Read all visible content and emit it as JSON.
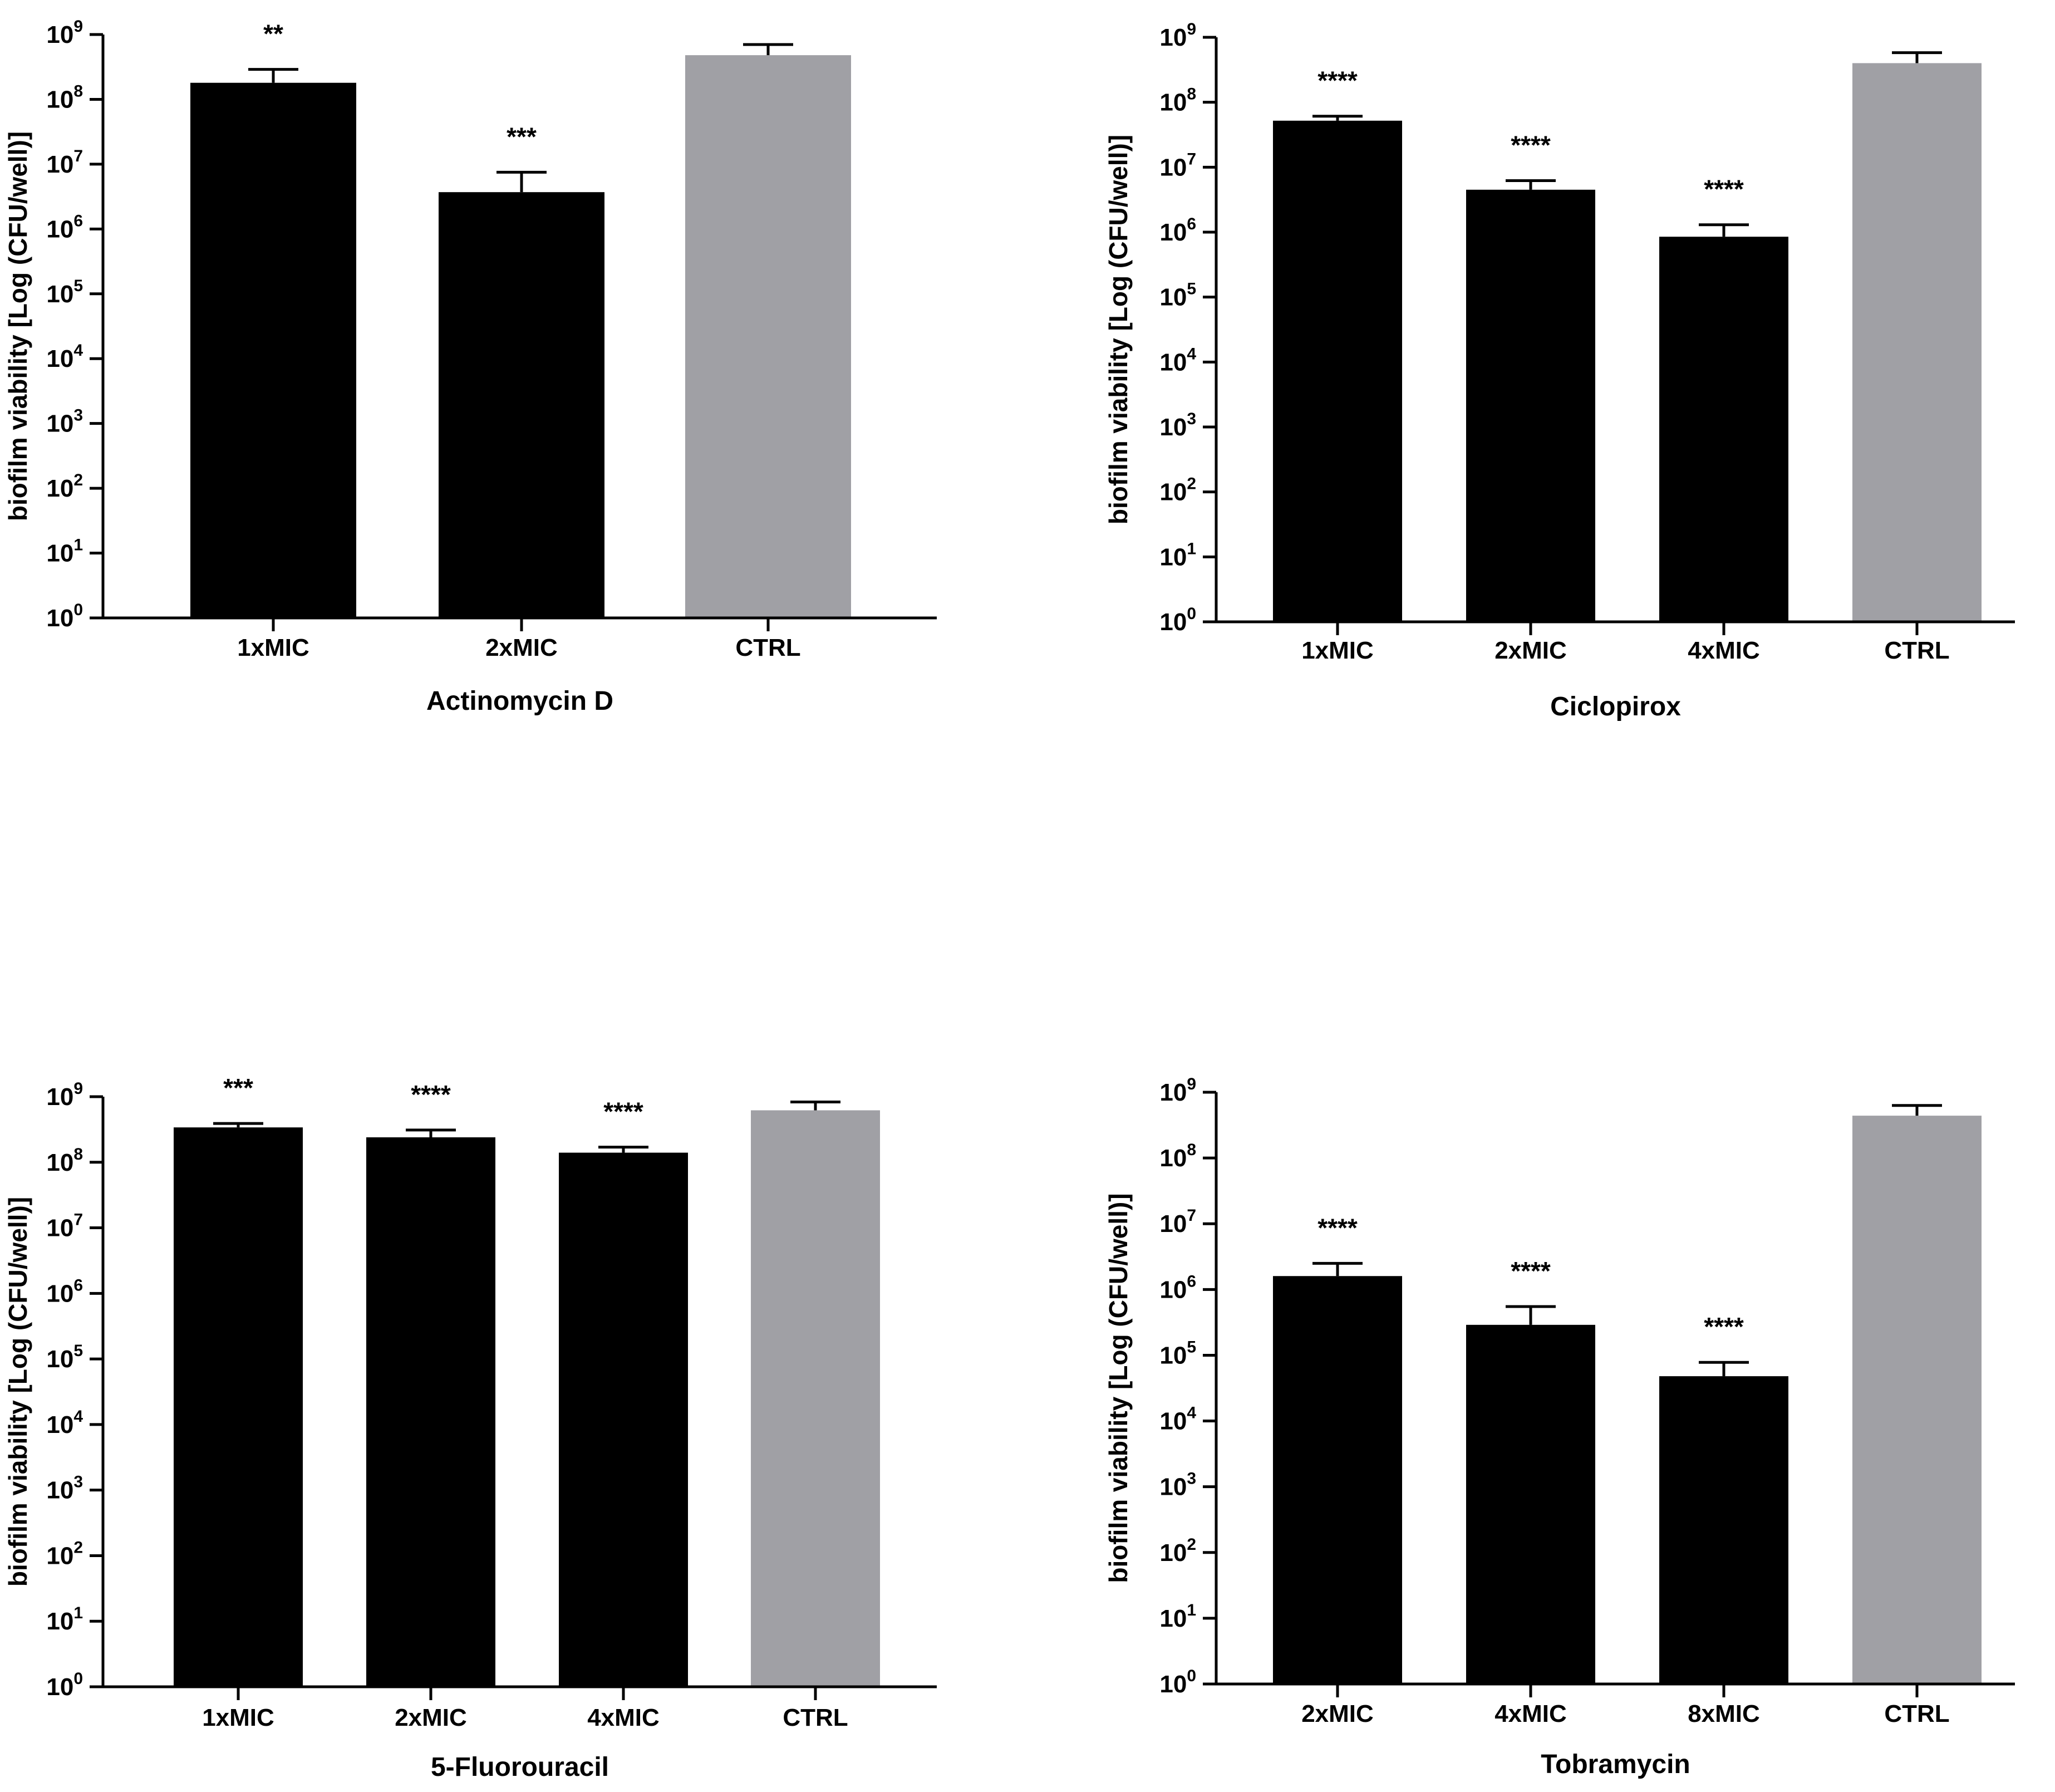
{
  "chart_data": [
    {
      "type": "bar",
      "title": "",
      "xlabel": "Actinomycin D",
      "ylabel": "biofilm viability [Log (CFU/well)]",
      "yscale": "log10",
      "ylim": [
        1,
        1000000000
      ],
      "ytick_exponents": [
        0,
        1,
        2,
        3,
        4,
        5,
        6,
        7,
        8,
        9
      ],
      "categories": [
        "1xMIC",
        "2xMIC",
        "CTRL"
      ],
      "values": [
        180000000,
        3700000,
        480000000
      ],
      "error_upper": [
        290000000,
        7500000,
        700000000
      ],
      "annotations": [
        "**",
        "***",
        ""
      ],
      "colors": [
        "#000000",
        "#000000",
        "#a0a0a5"
      ]
    },
    {
      "type": "bar",
      "title": "",
      "xlabel": "Ciclopirox",
      "ylabel": "biofilm viability [Log (CFU/well)]",
      "yscale": "log10",
      "ylim": [
        1,
        1000000000
      ],
      "ytick_exponents": [
        0,
        1,
        2,
        3,
        4,
        5,
        6,
        7,
        8,
        9
      ],
      "categories": [
        "1xMIC",
        "2xMIC",
        "4xMIC",
        "CTRL"
      ],
      "values": [
        52000000,
        4500000,
        850000,
        400000000
      ],
      "error_upper": [
        61000000,
        6200000,
        1300000,
        580000000
      ],
      "annotations": [
        "****",
        "****",
        "****",
        ""
      ],
      "colors": [
        "#000000",
        "#000000",
        "#000000",
        "#a0a0a5"
      ]
    },
    {
      "type": "bar",
      "title": "",
      "xlabel": "5-Fluorouracil",
      "ylabel": "biofilm viability [Log (CFU/well)]",
      "yscale": "log10",
      "ylim": [
        1,
        1000000000
      ],
      "ytick_exponents": [
        0,
        1,
        2,
        3,
        4,
        5,
        6,
        7,
        8,
        9
      ],
      "categories": [
        "1xMIC",
        "2xMIC",
        "4xMIC",
        "CTRL"
      ],
      "values": [
        340000000,
        240000000,
        140000000,
        620000000
      ],
      "error_upper": [
        390000000,
        310000000,
        170000000,
        830000000
      ],
      "annotations": [
        "***",
        "****",
        "****",
        ""
      ],
      "colors": [
        "#000000",
        "#000000",
        "#000000",
        "#a0a0a5"
      ]
    },
    {
      "type": "bar",
      "title": "",
      "xlabel": "Tobramycin",
      "ylabel": "biofilm viability [Log (CFU/well)]",
      "yscale": "log10",
      "ylim": [
        1,
        1000000000
      ],
      "ytick_exponents": [
        0,
        1,
        2,
        3,
        4,
        5,
        6,
        7,
        8,
        9
      ],
      "categories": [
        "2xMIC",
        "4xMIC",
        "8xMIC",
        "CTRL"
      ],
      "values": [
        1600000,
        290000,
        48000,
        440000000
      ],
      "error_upper": [
        2500000,
        550000,
        78000,
        630000000
      ],
      "annotations": [
        "****",
        "****",
        "****",
        ""
      ],
      "colors": [
        "#000000",
        "#000000",
        "#000000",
        "#a0a0a5"
      ]
    }
  ]
}
